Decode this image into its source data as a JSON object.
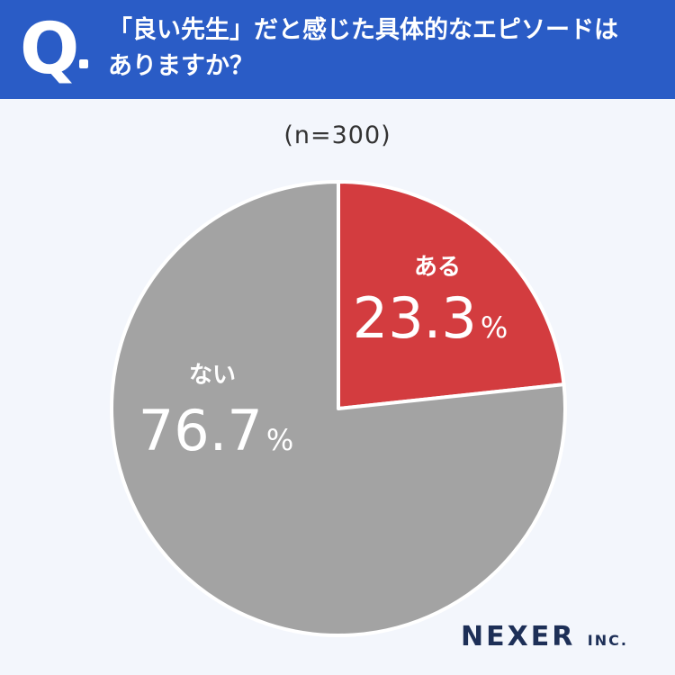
{
  "question": {
    "mark": "Q",
    "line1": "「良い先生」だと感じた具体的なエピソードは",
    "line2": "ありますか？"
  },
  "sample_size": "(n=300)",
  "brand": {
    "name": "NEXER",
    "suffix": "INC."
  },
  "colors": {
    "header": "#2a5cc6",
    "yes": "#d33c3f",
    "no": "#a3a3a3"
  },
  "chart_data": {
    "type": "pie",
    "slices": [
      {
        "label": "ある",
        "value": 23.3,
        "value_text": "23.3",
        "unit": "%",
        "color": "#d33c3f"
      },
      {
        "label": "ない",
        "value": 76.7,
        "value_text": "76.7",
        "unit": "%",
        "color": "#a3a3a3"
      }
    ],
    "start_angle": "12 o'clock",
    "direction": "clockwise"
  }
}
